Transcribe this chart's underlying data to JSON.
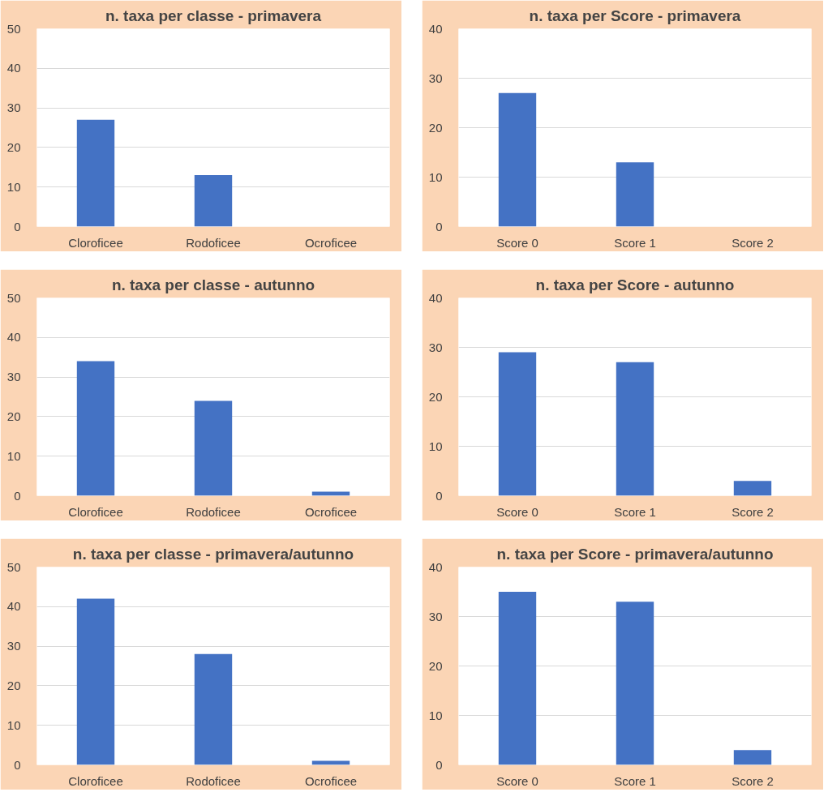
{
  "chart_data": [
    {
      "type": "bar",
      "title": "n. taxa per classe - primavera",
      "categories": [
        "Cloroficee",
        "Rodoficee",
        "Ocroficee"
      ],
      "values": [
        27,
        13,
        0
      ],
      "color": "#4472c4",
      "ylim": [
        0,
        50
      ],
      "yticks": [
        0,
        10,
        20,
        30,
        40,
        50
      ],
      "grid": "y"
    },
    {
      "type": "bar",
      "title": "n. taxa per Score - primavera",
      "categories": [
        "Score 0",
        "Score 1",
        "Score 2"
      ],
      "values": [
        27,
        13,
        0
      ],
      "color": "#4472c4",
      "ylim": [
        0,
        40
      ],
      "yticks": [
        0,
        10,
        20,
        30,
        40
      ],
      "grid": "y"
    },
    {
      "type": "bar",
      "title": "n. taxa per classe - autunno",
      "categories": [
        "Cloroficee",
        "Rodoficee",
        "Ocroficee"
      ],
      "values": [
        34,
        24,
        1
      ],
      "color": "#4472c4",
      "ylim": [
        0,
        50
      ],
      "yticks": [
        0,
        10,
        20,
        30,
        40,
        50
      ],
      "grid": "y"
    },
    {
      "type": "bar",
      "title": "n. taxa per Score - autunno",
      "categories": [
        "Score 0",
        "Score 1",
        "Score 2"
      ],
      "values": [
        29,
        27,
        3
      ],
      "color": "#4472c4",
      "ylim": [
        0,
        40
      ],
      "yticks": [
        0,
        10,
        20,
        30,
        40
      ],
      "grid": "y"
    },
    {
      "type": "bar",
      "title": "n. taxa per classe - primavera/autunno",
      "categories": [
        "Cloroficee",
        "Rodoficee",
        "Ocroficee"
      ],
      "values": [
        42,
        28,
        1
      ],
      "color": "#4472c4",
      "ylim": [
        0,
        50
      ],
      "yticks": [
        0,
        10,
        20,
        30,
        40,
        50
      ],
      "grid": "y"
    },
    {
      "type": "bar",
      "title": "n. taxa per Score - primavera/autunno",
      "categories": [
        "Score 0",
        "Score 1",
        "Score 2"
      ],
      "values": [
        35,
        33,
        3
      ],
      "color": "#4472c4",
      "ylim": [
        0,
        40
      ],
      "yticks": [
        0,
        10,
        20,
        30,
        40
      ],
      "grid": "y"
    }
  ]
}
